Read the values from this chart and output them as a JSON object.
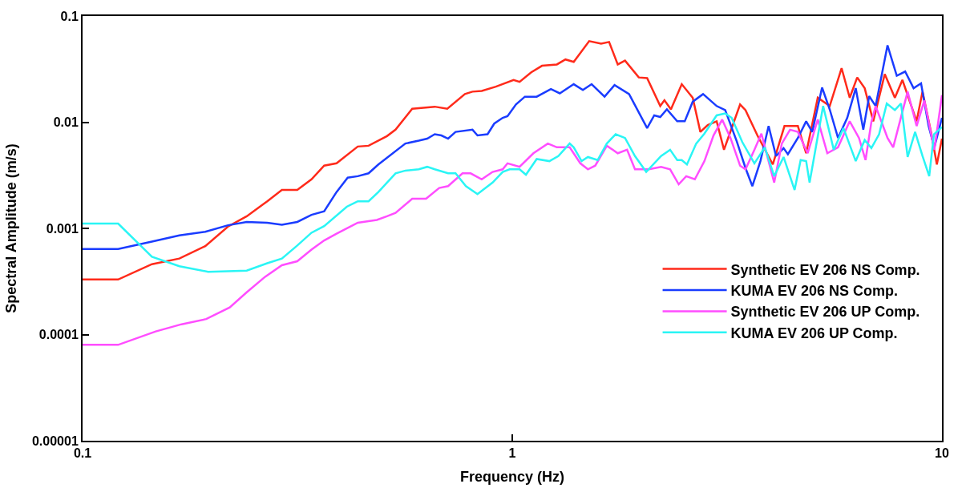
{
  "chart_data": {
    "type": "line",
    "xlabel": "Frequency (Hz)",
    "ylabel": "Spectral Amplitude (m/s)",
    "log": "xy",
    "xlim": [
      0.1,
      10
    ],
    "ylim": [
      1e-05,
      0.1
    ],
    "xticks": [
      0.1,
      1,
      10
    ],
    "yticks": [
      {
        "value": 1e-05,
        "label": "0.00001"
      },
      0.0001,
      0.001,
      0.01,
      0.1
    ],
    "legend": "bottom right",
    "marker": "none",
    "line_style": "solid",
    "series": [
      {
        "name": "Synthetic EV 206 NS Comp.",
        "color": "#ff2a1a",
        "x": [
          0.1,
          0.121,
          0.145,
          0.168,
          0.193,
          0.218,
          0.241,
          0.269,
          0.291,
          0.316,
          0.341,
          0.365,
          0.39,
          0.437,
          0.463,
          0.511,
          0.535,
          0.585,
          0.66,
          0.706,
          0.776,
          0.808,
          0.849,
          0.916,
          1.007,
          1.04,
          1.107,
          1.173,
          1.27,
          1.33,
          1.39,
          1.51,
          1.61,
          1.68,
          1.76,
          1.83,
          1.97,
          2.06,
          2.21,
          2.26,
          2.34,
          2.48,
          2.63,
          2.74,
          2.85,
          2.99,
          3.11,
          3.18,
          3.39,
          3.49,
          3.72,
          4.04,
          4.3,
          4.62,
          4.83,
          5.14,
          5.48,
          5.84,
          6.1,
          6.35,
          6.61,
          6.92,
          7.36,
          7.77,
          8.09,
          8.73,
          9.01,
          9.43,
          9.73,
          10
        ],
        "values": [
          0.00033,
          0.00033,
          0.00046,
          0.00052,
          0.00068,
          0.00104,
          0.0013,
          0.0018,
          0.0023,
          0.0023,
          0.0029,
          0.0039,
          0.0041,
          0.0059,
          0.006,
          0.0074,
          0.0085,
          0.0134,
          0.014,
          0.0134,
          0.0184,
          0.0194,
          0.0197,
          0.0216,
          0.025,
          0.024,
          0.0295,
          0.034,
          0.035,
          0.039,
          0.037,
          0.058,
          0.055,
          0.057,
          0.035,
          0.038,
          0.0264,
          0.026,
          0.0142,
          0.0161,
          0.0132,
          0.0228,
          0.017,
          0.0081,
          0.0094,
          0.0102,
          0.0055,
          0.0071,
          0.0147,
          0.013,
          0.0075,
          0.004,
          0.0092,
          0.0092,
          0.0051,
          0.017,
          0.0142,
          0.0323,
          0.017,
          0.0264,
          0.0209,
          0.0102,
          0.0284,
          0.017,
          0.025,
          0.0102,
          0.0194,
          0.0081,
          0.004,
          0.007
        ]
      },
      {
        "name": "KUMA EV 206 NS Comp.",
        "color": "#1a3cff",
        "x": [
          0.1,
          0.121,
          0.145,
          0.168,
          0.193,
          0.218,
          0.241,
          0.269,
          0.291,
          0.316,
          0.341,
          0.365,
          0.39,
          0.414,
          0.437,
          0.463,
          0.488,
          0.564,
          0.606,
          0.634,
          0.66,
          0.684,
          0.709,
          0.738,
          0.808,
          0.83,
          0.876,
          0.908,
          0.95,
          0.975,
          1.02,
          1.07,
          1.14,
          1.23,
          1.29,
          1.39,
          1.46,
          1.53,
          1.64,
          1.73,
          1.87,
          2.06,
          2.14,
          2.21,
          2.29,
          2.42,
          2.52,
          2.63,
          2.78,
          2.99,
          3.13,
          3.33,
          3.49,
          3.62,
          3.78,
          3.95,
          4.11,
          4.28,
          4.38,
          4.62,
          4.83,
          4.99,
          5.26,
          5.48,
          5.73,
          6.02,
          6.3,
          6.56,
          6.77,
          7.01,
          7.47,
          7.85,
          8.21,
          8.59,
          8.94,
          9.31,
          9.6,
          10
        ],
        "values": [
          0.00064,
          0.00064,
          0.00075,
          0.00086,
          0.00093,
          0.00107,
          0.00115,
          0.00113,
          0.00108,
          0.00115,
          0.00134,
          0.00145,
          0.0022,
          0.003,
          0.0031,
          0.0033,
          0.004,
          0.0063,
          0.0067,
          0.007,
          0.0077,
          0.0075,
          0.007,
          0.0081,
          0.0085,
          0.0075,
          0.0077,
          0.0097,
          0.011,
          0.0114,
          0.0147,
          0.0174,
          0.0174,
          0.0205,
          0.0187,
          0.0228,
          0.0201,
          0.0228,
          0.0174,
          0.0224,
          0.0184,
          0.0088,
          0.0116,
          0.0112,
          0.0132,
          0.0102,
          0.0102,
          0.0156,
          0.0184,
          0.0142,
          0.013,
          0.0066,
          0.0037,
          0.0025,
          0.0043,
          0.0092,
          0.0048,
          0.0057,
          0.005,
          0.0071,
          0.0102,
          0.0081,
          0.0212,
          0.0132,
          0.0071,
          0.011,
          0.0209,
          0.0085,
          0.0176,
          0.0142,
          0.053,
          0.0274,
          0.03,
          0.0209,
          0.0232,
          0.0092,
          0.0058,
          0.011
        ]
      },
      {
        "name": "Synthetic EV 206 UP Comp.",
        "color": "#ff4dff",
        "x": [
          0.1,
          0.121,
          0.148,
          0.17,
          0.194,
          0.22,
          0.241,
          0.266,
          0.291,
          0.316,
          0.341,
          0.365,
          0.39,
          0.437,
          0.463,
          0.484,
          0.511,
          0.535,
          0.585,
          0.63,
          0.676,
          0.709,
          0.766,
          0.8,
          0.849,
          0.9,
          0.95,
          0.975,
          1.04,
          1.12,
          1.21,
          1.27,
          1.36,
          1.44,
          1.5,
          1.56,
          1.66,
          1.76,
          1.85,
          1.93,
          2.08,
          2.22,
          2.33,
          2.44,
          2.54,
          2.66,
          2.8,
          2.94,
          3.08,
          3.22,
          3.39,
          3.49,
          3.66,
          3.8,
          4.07,
          4.24,
          4.43,
          4.62,
          4.87,
          5.14,
          5.41,
          5.73,
          6.1,
          6.41,
          6.64,
          6.85,
          7.01,
          7.47,
          7.7,
          8.32,
          8.73,
          9.1,
          9.6,
          10
        ],
        "values": [
          8e-05,
          8e-05,
          0.000107,
          0.000125,
          0.00014,
          0.00018,
          0.00025,
          0.00035,
          0.00045,
          0.00049,
          0.00063,
          0.00077,
          0.00089,
          0.00113,
          0.00117,
          0.0012,
          0.0013,
          0.0014,
          0.0019,
          0.0019,
          0.0024,
          0.0025,
          0.0033,
          0.0033,
          0.0029,
          0.0034,
          0.0036,
          0.0041,
          0.0038,
          0.0051,
          0.0063,
          0.0058,
          0.0058,
          0.0041,
          0.0036,
          0.0039,
          0.006,
          0.0051,
          0.0055,
          0.0036,
          0.0036,
          0.0038,
          0.0036,
          0.0026,
          0.0031,
          0.0029,
          0.0043,
          0.0075,
          0.0106,
          0.0071,
          0.0039,
          0.0036,
          0.0055,
          0.0078,
          0.0027,
          0.0063,
          0.0085,
          0.0081,
          0.0051,
          0.0106,
          0.0051,
          0.0058,
          0.0102,
          0.0071,
          0.0044,
          0.01,
          0.0142,
          0.0071,
          0.0058,
          0.0194,
          0.0092,
          0.016,
          0.0055,
          0.018
        ]
      },
      {
        "name": "KUMA EV 206 UP Comp.",
        "color": "#2af5f5",
        "x": [
          0.1,
          0.121,
          0.145,
          0.168,
          0.196,
          0.241,
          0.269,
          0.291,
          0.316,
          0.341,
          0.365,
          0.412,
          0.437,
          0.463,
          0.488,
          0.535,
          0.564,
          0.606,
          0.634,
          0.66,
          0.709,
          0.738,
          0.78,
          0.83,
          0.9,
          0.95,
          0.986,
          1.04,
          1.076,
          1.14,
          1.22,
          1.28,
          1.36,
          1.39,
          1.45,
          1.5,
          1.58,
          1.66,
          1.74,
          1.83,
          1.93,
          2.05,
          2.22,
          2.33,
          2.42,
          2.48,
          2.55,
          2.68,
          2.8,
          2.99,
          3.13,
          3.24,
          3.43,
          3.66,
          3.87,
          4.07,
          4.28,
          4.54,
          4.69,
          4.83,
          4.92,
          5.29,
          5.6,
          5.9,
          6.3,
          6.61,
          6.85,
          7.14,
          7.44,
          7.77,
          8.03,
          8.32,
          8.66,
          9.01,
          9.34,
          9.58,
          10
        ],
        "values": [
          0.00111,
          0.00111,
          0.00054,
          0.00044,
          0.00039,
          0.0004,
          0.00047,
          0.00052,
          0.00069,
          0.00091,
          0.00105,
          0.0016,
          0.0018,
          0.0018,
          0.0022,
          0.0033,
          0.0035,
          0.0036,
          0.0038,
          0.0036,
          0.0033,
          0.0033,
          0.0025,
          0.0021,
          0.0027,
          0.0034,
          0.0036,
          0.0036,
          0.0032,
          0.0045,
          0.0043,
          0.0048,
          0.0063,
          0.0058,
          0.0043,
          0.0047,
          0.0044,
          0.0063,
          0.0077,
          0.0071,
          0.0048,
          0.0034,
          0.0048,
          0.0055,
          0.0044,
          0.0044,
          0.004,
          0.0063,
          0.0078,
          0.0116,
          0.0121,
          0.011,
          0.0065,
          0.0041,
          0.0058,
          0.0031,
          0.0047,
          0.0023,
          0.0044,
          0.0043,
          0.0027,
          0.0142,
          0.0055,
          0.0088,
          0.0043,
          0.0068,
          0.0057,
          0.0077,
          0.015,
          0.013,
          0.015,
          0.0047,
          0.0081,
          0.0048,
          0.0031,
          0.0077,
          0.009
        ]
      }
    ]
  }
}
